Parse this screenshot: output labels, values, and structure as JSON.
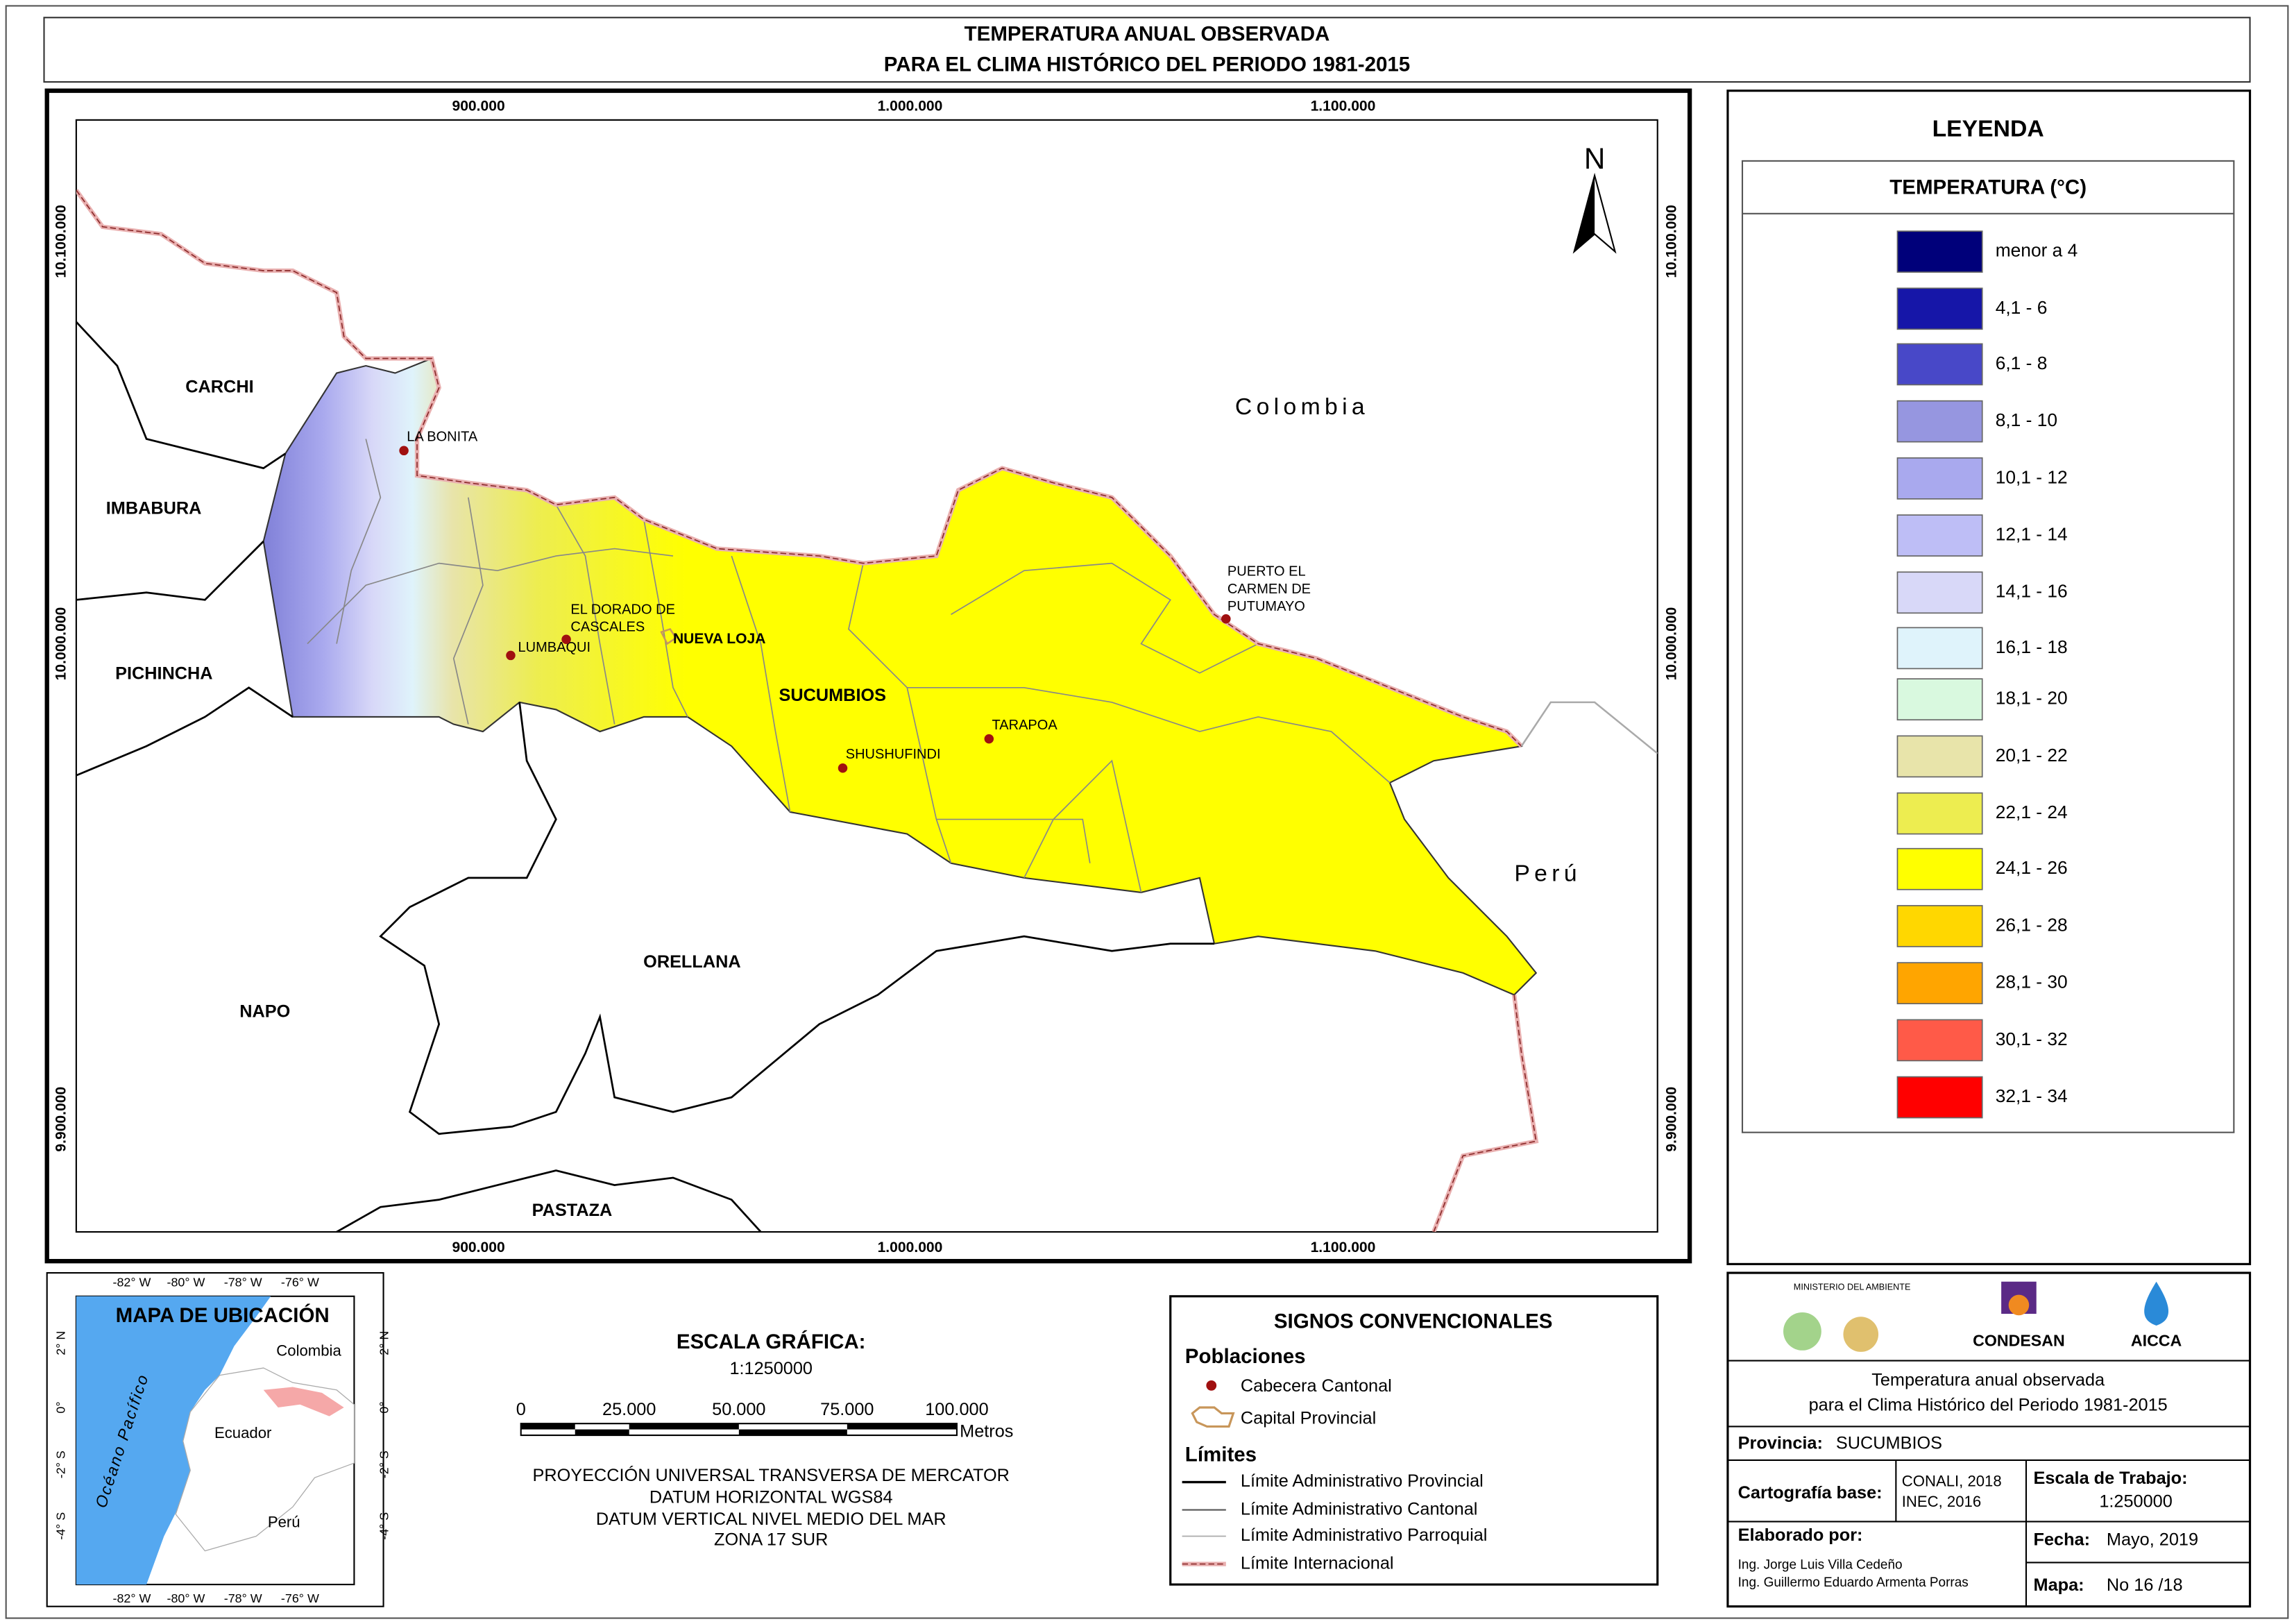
{
  "title": [
    "TEMPERATURA ANUAL OBSERVADA",
    "PARA EL CLIMA HISTÓRICO DEL PERIODO 1981-2015"
  ],
  "map": {
    "x_coords": [
      "900.000",
      "1.000.000",
      "1.100.000"
    ],
    "y_coords": [
      "10.100.000",
      "10.000.000",
      "9.900.000"
    ],
    "north": "N",
    "provinces": [
      "CARCHI",
      "IMBABURA",
      "PICHINCHA",
      "NAPO",
      "ORELLANA",
      "PASTAZA",
      "SUCUMBIOS"
    ],
    "countries": [
      "Colombia",
      "Perú"
    ],
    "towns": [
      [
        "LA BONITA"
      ],
      [
        "LUMBAQUI"
      ],
      [
        "EL DORADO DE",
        "CASCALES"
      ],
      [
        "SHUSHUFINDI"
      ],
      [
        "TARAPOA"
      ],
      [
        "PUERTO EL",
        "CARMEN DE",
        "PUTUMAYO"
      ]
    ],
    "capital": "NUEVA LOJA"
  },
  "legend": {
    "title": "LEYENDA",
    "subtitle": "TEMPERATURA (°C)",
    "classes": [
      {
        "label": "menor a 4",
        "color": "#00007a"
      },
      {
        "label": "4,1 - 6",
        "color": "#1616a8"
      },
      {
        "label": "6,1 - 8",
        "color": "#4848c8"
      },
      {
        "label": "8,1 - 10",
        "color": "#9696e0"
      },
      {
        "label": "10,1 - 12",
        "color": "#a9a9ee"
      },
      {
        "label": "12,1 - 14",
        "color": "#bebef6"
      },
      {
        "label": "14,1 - 16",
        "color": "#d8d8f8"
      },
      {
        "label": "16,1 - 18",
        "color": "#dff3fb"
      },
      {
        "label": "18,1 - 20",
        "color": "#d9f9df"
      },
      {
        "label": "20,1 - 22",
        "color": "#e8e4aa"
      },
      {
        "label": "22,1 - 24",
        "color": "#eded50"
      },
      {
        "label": "24,1 - 26",
        "color": "#ffff00"
      },
      {
        "label": "26,1 - 28",
        "color": "#ffd700"
      },
      {
        "label": "28,1 - 30",
        "color": "#ffa500"
      },
      {
        "label": "30,1 - 32",
        "color": "#ff5a48"
      },
      {
        "label": "32,1 - 34",
        "color": "#ff0000"
      }
    ]
  },
  "location_map": {
    "title": "MAPA DE UBICACIÓN",
    "lon_ticks": [
      "-82° W",
      "-80° W",
      "-78° W",
      "-76° W"
    ],
    "lat_ticks": [
      "2° N",
      "0°",
      "-2° S",
      "-4° S"
    ],
    "labels": [
      "Colombia",
      "Ecuador",
      "Perú",
      "Océano Pacífico"
    ]
  },
  "scale": {
    "title": "ESCALA GRÁFICA:",
    "ratio": "1:1250000",
    "ticks": [
      "0",
      "25.000",
      "50.000",
      "75.000",
      "100.000"
    ],
    "unit": "Metros",
    "projection": [
      "PROYECCIÓN UNIVERSAL TRANSVERSA DE MERCATOR",
      "DATUM HORIZONTAL WGS84",
      "DATUM VERTICAL NIVEL MEDIO DEL MAR",
      "ZONA 17 SUR"
    ]
  },
  "signs": {
    "title": "SIGNOS CONVENCIONALES",
    "populations": "Poblaciones",
    "cabecera": "Cabecera Cantonal",
    "capital": "Capital Provincial",
    "limits": "Límites",
    "limit_items": [
      "Límite Administrativo Provincial",
      "Límite Administrativo Cantonal",
      "Límite Administrativo Parroquial",
      "Límite Internacional"
    ]
  },
  "info": {
    "logos": [
      "MINISTERIO DEL AMBIENTE",
      "CONDESAN",
      "AICCA"
    ],
    "description": [
      "Temperatura anual observada",
      "para el Clima Histórico del Periodo 1981-2015"
    ],
    "province_label": "Provincia:",
    "province": "SUCUMBIOS",
    "base_label": "Cartografía base:",
    "base": [
      "CONALI, 2018",
      "INEC, 2016"
    ],
    "work_scale_label": "Escala de Trabajo:",
    "work_scale": "1:250000",
    "author_label": "Elaborado por:",
    "authors": [
      "Ing. Jorge Luis Villa Cedeño",
      "Ing. Guillermo Eduardo Armenta Porras"
    ],
    "date_label": "Fecha:",
    "date": "Mayo, 2019",
    "map_label": "Mapa:",
    "map_number": "No 16 /18"
  }
}
